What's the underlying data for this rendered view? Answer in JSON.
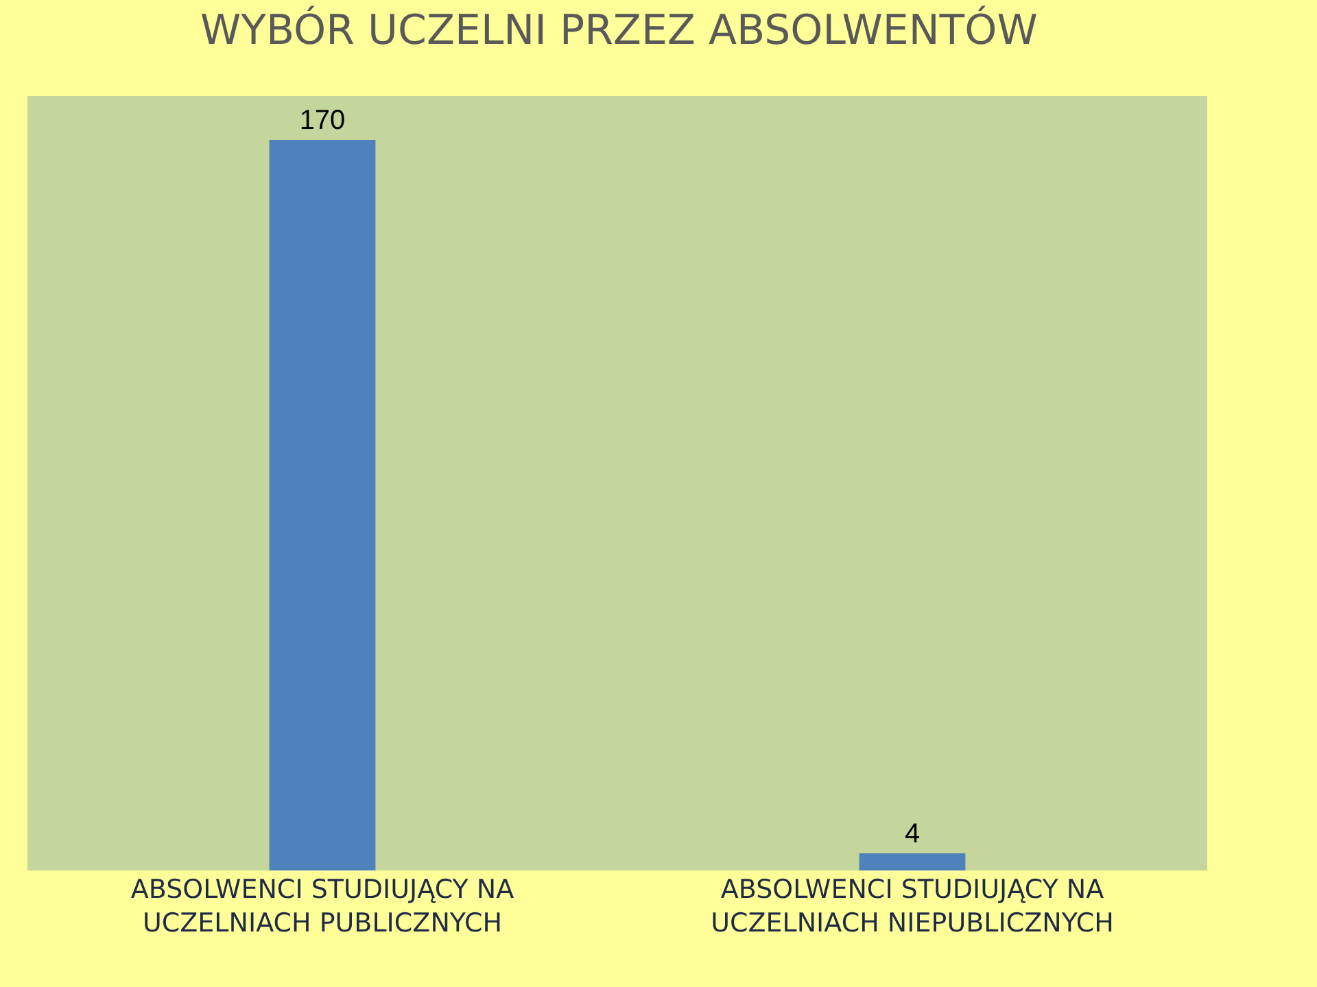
{
  "chart_data": {
    "type": "bar",
    "title": "WYBÓR UCZELNI PRZEZ ABSOLWENTÓW",
    "categories": [
      "ABSOLWENCI STUDIUJĄCY NA UCZELNIACH PUBLICZNYCH",
      "ABSOLWENCI STUDIUJĄCY NA UCZELNIACH NIEPUBLICZNYCH"
    ],
    "values": [
      170,
      4
    ],
    "color": "#4f81bd",
    "data_labels": true
  }
}
